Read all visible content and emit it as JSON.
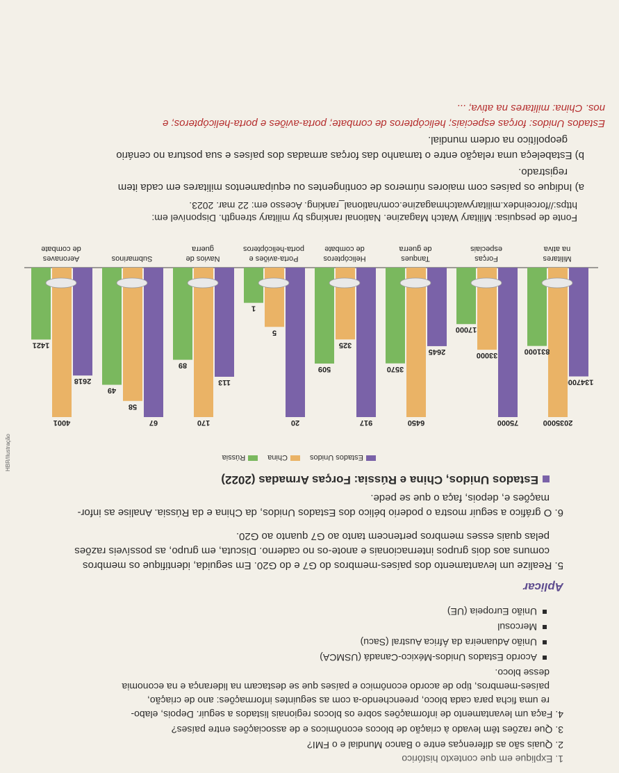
{
  "questions": {
    "q1": "1.  Explique em que contexto histórico",
    "q2": "2.  Quais são as diferenças entre o Banco Mundial e o FMI?",
    "q3": "3.  Que razões têm levado à criação de blocos econômicos e de associações entre países?",
    "q4_line1": "4.  Faça um levantamento de informações sobre os blocos regionais listados a seguir. Depois, elabo-",
    "q4_line2": "re uma ficha para cada bloco, preenchendo-a com as seguintes informações: ano de criação,",
    "q4_line3": "países-membros, tipo de acordo econômico e países que se destacam na liderança e na economia",
    "q4_line4": "desse bloco.",
    "bullets": [
      "Acordo Estados Unidos-México-Canadá (USMCA)",
      "União Aduaneira da África Austral (Sacu)",
      "Mercosul",
      "União Europeia (UE)"
    ],
    "section_heading": "Aplicar",
    "q5_line1": "5.  Realize um levantamento dos países-membros do G7 e do G20. Em seguida, identifique os membros",
    "q5_line2": "comuns aos dois grupos internacionais e anote-os no caderno. Discuta, em grupo, as possíveis razões",
    "q5_line3": "pelas quais esses membros pertencem tanto ao G7 quanto ao G20.",
    "q6_line1": "6.  O gráfico a seguir mostra o poderio bélico dos Estados Unidos, da China e da Rússia. Analise as infor-",
    "q6_line2": "mações e, depois, faça o que se pede.",
    "source_line1": "Fonte de pesquisa: Military Watch Magazine. National rankings by military strength. Disponível em:",
    "source_line2": "https://forceindex.militarywatchmagazine.com/national_ranking. Acesso em: 22 mar. 2023.",
    "qa_line1": "a)  Indique os países com maiores números de contingentes ou equipamentos militares em cada item",
    "qa_line2": "registrado.",
    "qb_line1": "b)  Estabeleça uma relação entre o tamanho das forças armadas dos países e sua postura no cenário",
    "qb_line2": "geopolítico na ordem mundial.",
    "answer_line1": "Estados Unidos: forças especiais; helicópteros de combate; porta-aviões e porta-helicópteros; e",
    "answer_line2": "nos. China: militares na ativa; ..."
  },
  "credit": "HBR/Ilustração",
  "colors": {
    "usa": "#7a62a8",
    "china": "#eab366",
    "russia": "#7ab85e",
    "heading": "#5e4c8f",
    "answer": "#b52d2d"
  },
  "chart_data": {
    "type": "bar",
    "title": "Estados Unidos, China e Rússia: Forças Armadas (2022)",
    "legend": [
      "Estados Unidos",
      "China",
      "Rússia"
    ],
    "categories": [
      [
        "Militares",
        "na ativa"
      ],
      [
        "Forças",
        "especiais"
      ],
      [
        "Tanques",
        "de guerra"
      ],
      [
        "Helicópteros",
        "de combate"
      ],
      [
        "Porta-aviões e",
        "porta-helicópteros"
      ],
      [
        "Navios de",
        "guerra"
      ],
      [
        "Submarinos",
        ""
      ],
      [
        "Aeronaves",
        "de combate"
      ]
    ],
    "series": [
      {
        "name": "Estados Unidos",
        "labels": [
          "1347000",
          "75000",
          "2645",
          "917",
          "20",
          "113",
          "67",
          "2618"
        ]
      },
      {
        "name": "China",
        "labels": [
          "2035000",
          "33000",
          "6450",
          "325",
          "5",
          "170",
          "58",
          "4001"
        ]
      },
      {
        "name": "Rússia",
        "labels": [
          "831000",
          "17000",
          "3570",
          "509",
          "1",
          "89",
          "49",
          "1421"
        ]
      }
    ],
    "icons": [
      "soldier-icon",
      "soldier-icon",
      "tank-icon",
      "helicopter-icon",
      "aircraft-carrier-icon",
      "warship-icon",
      "submarine-icon",
      "fighter-jet-icon"
    ]
  }
}
